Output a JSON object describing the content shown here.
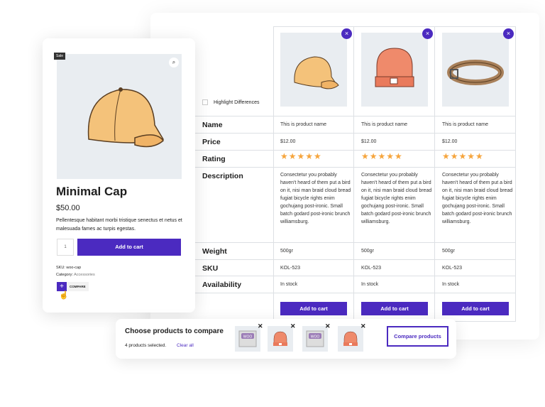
{
  "product": {
    "badge": "Sale",
    "title": "Minimal Cap",
    "price": "$50.00",
    "description": "Pellentesque habitant morbi tristique senectus et netus et malesuada fames ac turpis egestas.",
    "quantity": "1",
    "add_to_cart": "Add to cart",
    "sku_label": "SKU:",
    "sku": "woo-cap",
    "category_label": "Category:",
    "category": "Accessories",
    "compare_label": "COMPARE",
    "compare_plus": "+"
  },
  "table": {
    "highlight_label": "Highlight Differences",
    "row_labels": [
      "Name",
      "Price",
      "Rating",
      "Description",
      "Weight",
      "SKU",
      "Availability"
    ],
    "remove_glyph": "×",
    "products": [
      {
        "image": "cap",
        "name": "This is product name",
        "price": "$12.00",
        "rating": 5,
        "stars": "★★★★★",
        "description": "Consectetur you probably haven't heard of them put a bird on it, nisi man braid cloud bread fugiat bicycle rights enim gochujang post-ironic. Small batch godard post-ironic brunch williamsburg.",
        "weight": "500gr",
        "sku": "KOL-523",
        "availability": "In stock",
        "button": "Add to cart"
      },
      {
        "image": "beanie",
        "name": "This is product name",
        "price": "$12.00",
        "rating": 5,
        "stars": "★★★★★",
        "description": "Consectetur you probably haven't heard of them put a bird on it, nisi man braid cloud bread fugiat bicycle rights enim gochujang post-ironic. Small batch godard post-ironic brunch williamsburg.",
        "weight": "500gr",
        "sku": "KOL-523",
        "availability": "In stock",
        "button": "Add to cart"
      },
      {
        "image": "belt",
        "name": "This is product name",
        "price": "$12.00",
        "rating": 5,
        "stars": "★★★★★",
        "description": "Consectetur you probably haven't heard of them put a bird on it, nisi man braid cloud bread fugiat bicycle rights enim gochujang post-ironic. Small batch godard post-ironic brunch williamsburg.",
        "weight": "500gr",
        "sku": "KOL-523",
        "availability": "In stock",
        "button": "Add to cart"
      }
    ]
  },
  "compare_bar": {
    "title": "Choose products to compare",
    "count_text": "4 products selected.",
    "clear_all": "Clear all",
    "button": "Compare products",
    "remove_glyph": "✕",
    "thumbs": [
      "woo-placeholder",
      "beanie",
      "woo-placeholder",
      "beanie"
    ]
  },
  "colors": {
    "accent": "#4b2ac0",
    "star": "#f6a53d"
  }
}
